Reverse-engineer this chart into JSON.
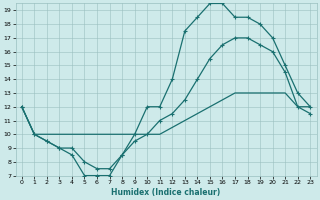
{
  "xlabel": "Humidex (Indice chaleur)",
  "bg_color": "#ceeaea",
  "grid_color": "#9abfbf",
  "line_color": "#1a7070",
  "xlim": [
    -0.5,
    23.5
  ],
  "ylim": [
    7,
    19.5
  ],
  "xticks": [
    0,
    1,
    2,
    3,
    4,
    5,
    6,
    7,
    8,
    9,
    10,
    11,
    12,
    13,
    14,
    15,
    16,
    17,
    18,
    19,
    20,
    21,
    22,
    23
  ],
  "yticks": [
    7,
    8,
    9,
    10,
    11,
    12,
    13,
    14,
    15,
    16,
    17,
    18,
    19
  ],
  "line1_x": [
    0,
    1,
    2,
    3,
    4,
    5,
    6,
    7,
    8,
    9,
    10,
    11,
    12,
    13,
    14,
    15,
    16,
    17,
    18,
    19,
    20,
    21,
    22,
    23
  ],
  "line1_y": [
    12,
    10,
    9.5,
    9,
    8.5,
    7,
    7,
    7,
    8.5,
    10,
    12,
    12,
    14,
    17.5,
    18.5,
    19.5,
    19.5,
    18.5,
    18.5,
    18,
    17,
    15,
    13,
    12
  ],
  "line2_x": [
    0,
    1,
    2,
    3,
    4,
    5,
    6,
    7,
    8,
    9,
    10,
    11,
    12,
    13,
    14,
    15,
    16,
    17,
    18,
    19,
    20,
    21,
    22,
    23
  ],
  "line2_y": [
    12,
    10,
    9.5,
    9,
    9,
    8,
    7.5,
    7.5,
    8.5,
    9.5,
    10,
    11,
    11.5,
    12.5,
    14,
    15.5,
    16.5,
    17,
    17,
    16.5,
    16,
    14.5,
    12,
    11.5
  ],
  "line3_x": [
    0,
    1,
    2,
    3,
    4,
    5,
    6,
    7,
    8,
    9,
    10,
    11,
    12,
    13,
    14,
    15,
    16,
    17,
    18,
    19,
    20,
    21,
    22,
    23
  ],
  "line3_y": [
    12,
    10,
    10,
    10,
    10,
    10,
    10,
    10,
    10,
    10,
    10,
    10,
    10.5,
    11,
    11.5,
    12,
    12.5,
    13,
    13,
    13,
    13,
    13,
    12,
    12
  ]
}
